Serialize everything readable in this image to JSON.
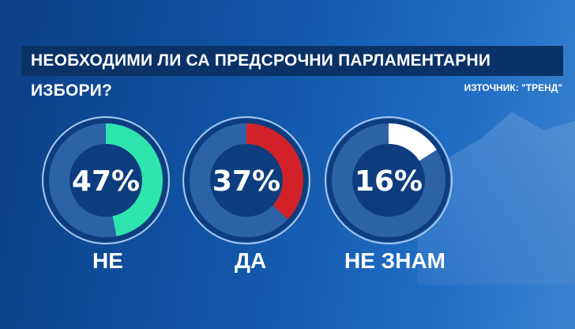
{
  "title": "НЕОБХОДИМИ ЛИ СА ПРЕДСРОЧНИ ПАРЛАМЕНТАРНИ ИЗБОРИ?",
  "source": "ИЗТОЧНИК: \"ТРЕНД\"",
  "chart_data": {
    "type": "pie",
    "title": "НЕОБХОДИМИ ЛИ СА ПРЕДСРОЧНИ ПАРЛАМЕНТАРНИ ИЗБОРИ?",
    "categories": [
      "НЕ",
      "ДА",
      "НЕ ЗНАМ"
    ],
    "values": [
      47,
      37,
      16
    ],
    "value_labels": [
      "47%",
      "37%",
      "16%"
    ],
    "colors": [
      "#2ee6ad",
      "#d32128",
      "#ffffff"
    ],
    "unit": "%"
  }
}
